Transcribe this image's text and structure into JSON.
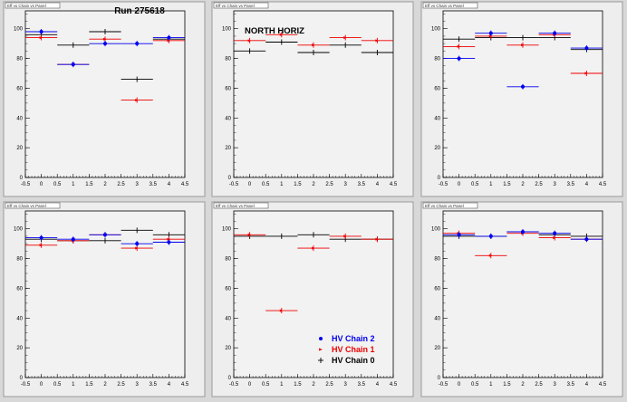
{
  "figure": {
    "run_label": "Run 275618",
    "region_label": "NORTH HORIZ",
    "tiny_title": "Eff vs Chain vs Panel",
    "legend": [
      {
        "label": "HV Chain 2",
        "color": "#0000ee",
        "marker": "dot"
      },
      {
        "label": "HV Chain 1",
        "color": "#ee0000",
        "marker": "arrow"
      },
      {
        "label": "HV Chain 0",
        "color": "#000000",
        "marker": "cross"
      }
    ],
    "colors": {
      "frame": "#eeeeee",
      "pad": "#f2f2f2",
      "chain2": "#0000ee",
      "chain1": "#ee0000",
      "chain0": "#000000"
    }
  },
  "chart_data": [
    {
      "type": "scatter",
      "xticks": [
        "-0.5",
        "0",
        "0.5",
        "1",
        "1.5",
        "2",
        "2.5",
        "3",
        "3.5",
        "4",
        "4.5"
      ],
      "yticks": [
        "0",
        "20",
        "40",
        "60",
        "80",
        "100"
      ],
      "xlim": [
        -0.5,
        4.5
      ],
      "ylim": [
        0,
        112
      ],
      "series": [
        {
          "name": "HV Chain 2",
          "x": [
            0,
            1,
            2,
            3,
            4
          ],
          "y": [
            98,
            76,
            90,
            90,
            94
          ]
        },
        {
          "name": "HV Chain 1",
          "x": [
            0,
            1,
            2,
            3,
            4
          ],
          "y": [
            94,
            76,
            93,
            52,
            92
          ]
        },
        {
          "name": "HV Chain 0",
          "x": [
            0,
            1,
            2,
            3,
            4
          ],
          "y": [
            96,
            89,
            98,
            66,
            93
          ]
        }
      ]
    },
    {
      "type": "scatter",
      "xticks": [
        "-0.5",
        "0",
        "0.5",
        "1",
        "1.5",
        "2",
        "2.5",
        "3",
        "3.5",
        "4",
        "4.5"
      ],
      "yticks": [
        "0",
        "20",
        "40",
        "60",
        "80",
        "100"
      ],
      "xlim": [
        -0.5,
        4.5
      ],
      "ylim": [
        0,
        112
      ],
      "series": [
        {
          "name": "HV Chain 2",
          "x": [],
          "y": []
        },
        {
          "name": "HV Chain 1",
          "x": [
            0,
            1,
            2,
            3,
            4
          ],
          "y": [
            92,
            96,
            89,
            94,
            92
          ]
        },
        {
          "name": "HV Chain 0",
          "x": [
            0,
            1,
            2,
            3,
            4
          ],
          "y": [
            85,
            91,
            84,
            89,
            84
          ]
        }
      ]
    },
    {
      "type": "scatter",
      "xticks": [
        "-0.5",
        "0",
        "0.5",
        "1",
        "1.5",
        "2",
        "2.5",
        "3",
        "3.5",
        "4",
        "4.5"
      ],
      "yticks": [
        "0",
        "20",
        "40",
        "60",
        "80",
        "100"
      ],
      "xlim": [
        -0.5,
        4.5
      ],
      "ylim": [
        0,
        112
      ],
      "series": [
        {
          "name": "HV Chain 2",
          "x": [
            0,
            1,
            2,
            3,
            4
          ],
          "y": [
            80,
            97,
            61,
            97,
            87
          ]
        },
        {
          "name": "HV Chain 1",
          "x": [
            0,
            1,
            2,
            3,
            4
          ],
          "y": [
            88,
            95,
            89,
            96,
            70
          ]
        },
        {
          "name": "HV Chain 0",
          "x": [
            0,
            1,
            2,
            3,
            4
          ],
          "y": [
            93,
            94,
            94,
            94,
            86
          ]
        }
      ]
    },
    {
      "type": "scatter",
      "xticks": [
        "-0.5",
        "0",
        "0.5",
        "1",
        "1.5",
        "2",
        "2.5",
        "3",
        "3.5",
        "4",
        "4.5"
      ],
      "yticks": [
        "0",
        "20",
        "40",
        "60",
        "80",
        "100"
      ],
      "xlim": [
        -0.5,
        4.5
      ],
      "ylim": [
        0,
        112
      ],
      "series": [
        {
          "name": "HV Chain 2",
          "x": [
            0,
            1,
            2,
            3,
            4
          ],
          "y": [
            94,
            93,
            96,
            90,
            91
          ]
        },
        {
          "name": "HV Chain 1",
          "x": [
            0,
            1,
            2,
            3,
            4
          ],
          "y": [
            89,
            92,
            96,
            87,
            93
          ]
        },
        {
          "name": "HV Chain 0",
          "x": [
            0,
            1,
            2,
            3,
            4
          ],
          "y": [
            93,
            92,
            92,
            99,
            96
          ]
        }
      ]
    },
    {
      "type": "scatter",
      "xticks": [
        "-0.5",
        "0",
        "0.5",
        "1",
        "1.5",
        "2",
        "2.5",
        "3",
        "3.5",
        "4",
        "4.5"
      ],
      "yticks": [
        "0",
        "20",
        "40",
        "60",
        "80",
        "100"
      ],
      "xlim": [
        -0.5,
        4.5
      ],
      "ylim": [
        0,
        112
      ],
      "series": [
        {
          "name": "HV Chain 2",
          "x": [],
          "y": []
        },
        {
          "name": "HV Chain 1",
          "x": [
            0,
            1,
            2,
            3,
            4
          ],
          "y": [
            96,
            45,
            87,
            95,
            93
          ]
        },
        {
          "name": "HV Chain 0",
          "x": [
            0,
            1,
            2,
            3,
            4
          ],
          "y": [
            95,
            95,
            96,
            93,
            93
          ]
        }
      ]
    },
    {
      "type": "scatter",
      "xticks": [
        "-0.5",
        "0",
        "0.5",
        "1",
        "1.5",
        "2",
        "2.5",
        "3",
        "3.5",
        "4",
        "4.5"
      ],
      "yticks": [
        "0",
        "20",
        "40",
        "60",
        "80",
        "100"
      ],
      "xlim": [
        -0.5,
        4.5
      ],
      "ylim": [
        0,
        112
      ],
      "series": [
        {
          "name": "HV Chain 2",
          "x": [
            0,
            1,
            2,
            3,
            4
          ],
          "y": [
            96,
            95,
            98,
            97,
            93
          ]
        },
        {
          "name": "HV Chain 1",
          "x": [
            0,
            1,
            2,
            3,
            4
          ],
          "y": [
            97,
            82,
            97,
            94,
            93
          ]
        },
        {
          "name": "HV Chain 0",
          "x": [
            0,
            1,
            2,
            3,
            4
          ],
          "y": [
            95,
            95,
            98,
            96,
            95
          ]
        }
      ]
    }
  ]
}
